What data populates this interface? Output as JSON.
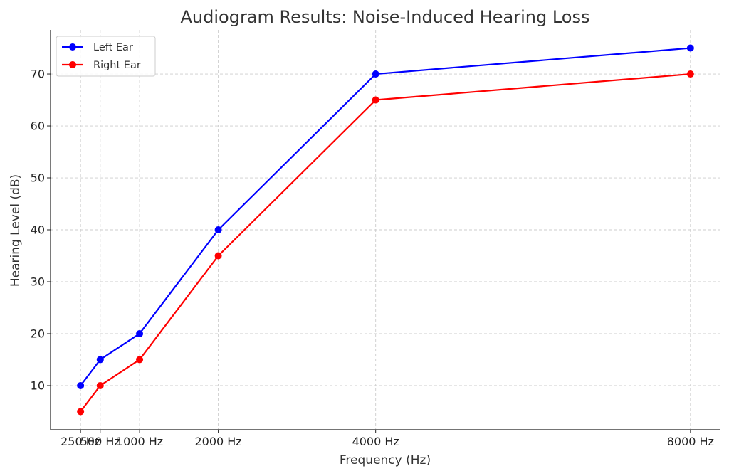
{
  "chart_data": {
    "type": "line",
    "title": "Audiogram Results: Noise-Induced Hearing Loss",
    "xlabel": "Frequency (Hz)",
    "ylabel": "Hearing Level (dB)",
    "x": [
      250,
      500,
      1000,
      2000,
      4000,
      8000
    ],
    "x_tick_labels": [
      "250 Hz",
      "500 Hz",
      "1000 Hz",
      "2000 Hz",
      "4000 Hz",
      "8000 Hz"
    ],
    "xlim": [
      -131.25,
      8381.25
    ],
    "ylim": [
      1.5,
      78.5
    ],
    "y_ticks": [
      10,
      20,
      30,
      40,
      50,
      60,
      70
    ],
    "grid": true,
    "legend_position": "top-left",
    "series": [
      {
        "name": "Left Ear",
        "color": "#0000ff",
        "values": [
          10,
          15,
          20,
          40,
          70,
          75
        ]
      },
      {
        "name": "Right Ear",
        "color": "#ff0000",
        "values": [
          5,
          10,
          15,
          35,
          65,
          70
        ]
      }
    ]
  }
}
